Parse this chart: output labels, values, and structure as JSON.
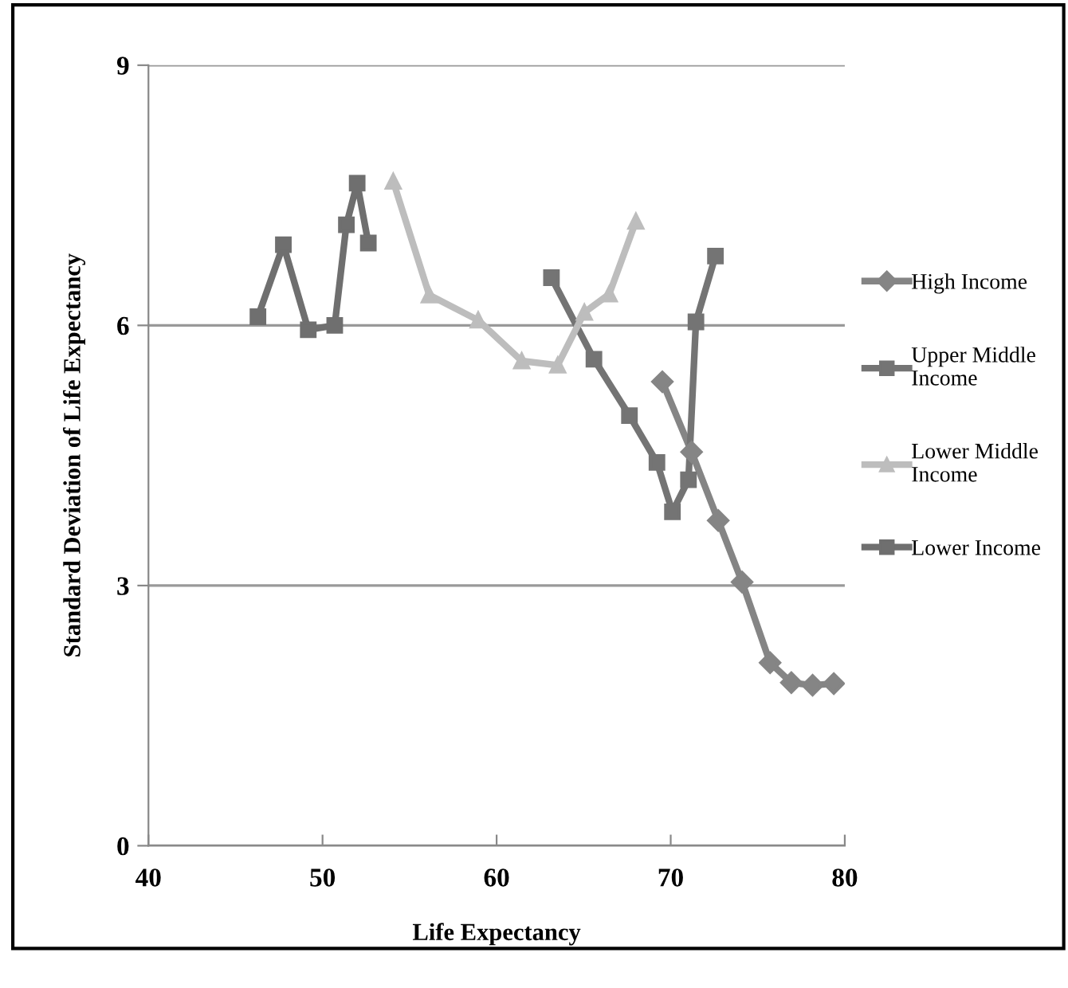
{
  "chart_data": {
    "type": "line",
    "xlabel": "Life Expectancy",
    "ylabel": "Standard Deviation of Life Expectancy",
    "xlim": [
      40,
      80
    ],
    "xticks": [
      40,
      50,
      60,
      70,
      80
    ],
    "ylim": [
      0,
      9
    ],
    "yticks": [
      0,
      3,
      6,
      9
    ],
    "grid": "y",
    "legend": "right",
    "line_style": "solid",
    "series": [
      {
        "name": "High Income",
        "color": "#858585",
        "marker": "diamond",
        "x": [
          69.52,
          71.2,
          72.73,
          74.1,
          75.71,
          76.93,
          78.15,
          79.37
        ],
        "values": [
          5.35,
          4.54,
          3.75,
          3.04,
          2.11,
          1.88,
          1.85,
          1.87
        ]
      },
      {
        "name": "Upper Middle Income",
        "color": "#747474",
        "marker": "square",
        "x": [
          63.15,
          65.59,
          67.63,
          69.21,
          70.1,
          71.02,
          71.45,
          72.57
        ],
        "values": [
          6.55,
          5.61,
          4.96,
          4.42,
          3.85,
          4.22,
          6.04,
          6.8
        ]
      },
      {
        "name": "Lower Middle Income",
        "color": "#bdbdbd",
        "marker": "triangle",
        "x": [
          54.06,
          56.13,
          58.94,
          61.44,
          63.51,
          65.04,
          66.47,
          68.0
        ],
        "values": [
          7.66,
          6.35,
          6.06,
          5.59,
          5.54,
          6.15,
          6.36,
          7.2
        ]
      },
      {
        "name": "Lower Income",
        "color": "#6f6f6f",
        "marker": "square",
        "x": [
          46.29,
          47.75,
          49.18,
          50.7,
          51.37,
          51.99,
          52.63
        ],
        "values": [
          6.1,
          6.93,
          5.95,
          6.0,
          7.16,
          7.64,
          6.95
        ]
      }
    ]
  }
}
